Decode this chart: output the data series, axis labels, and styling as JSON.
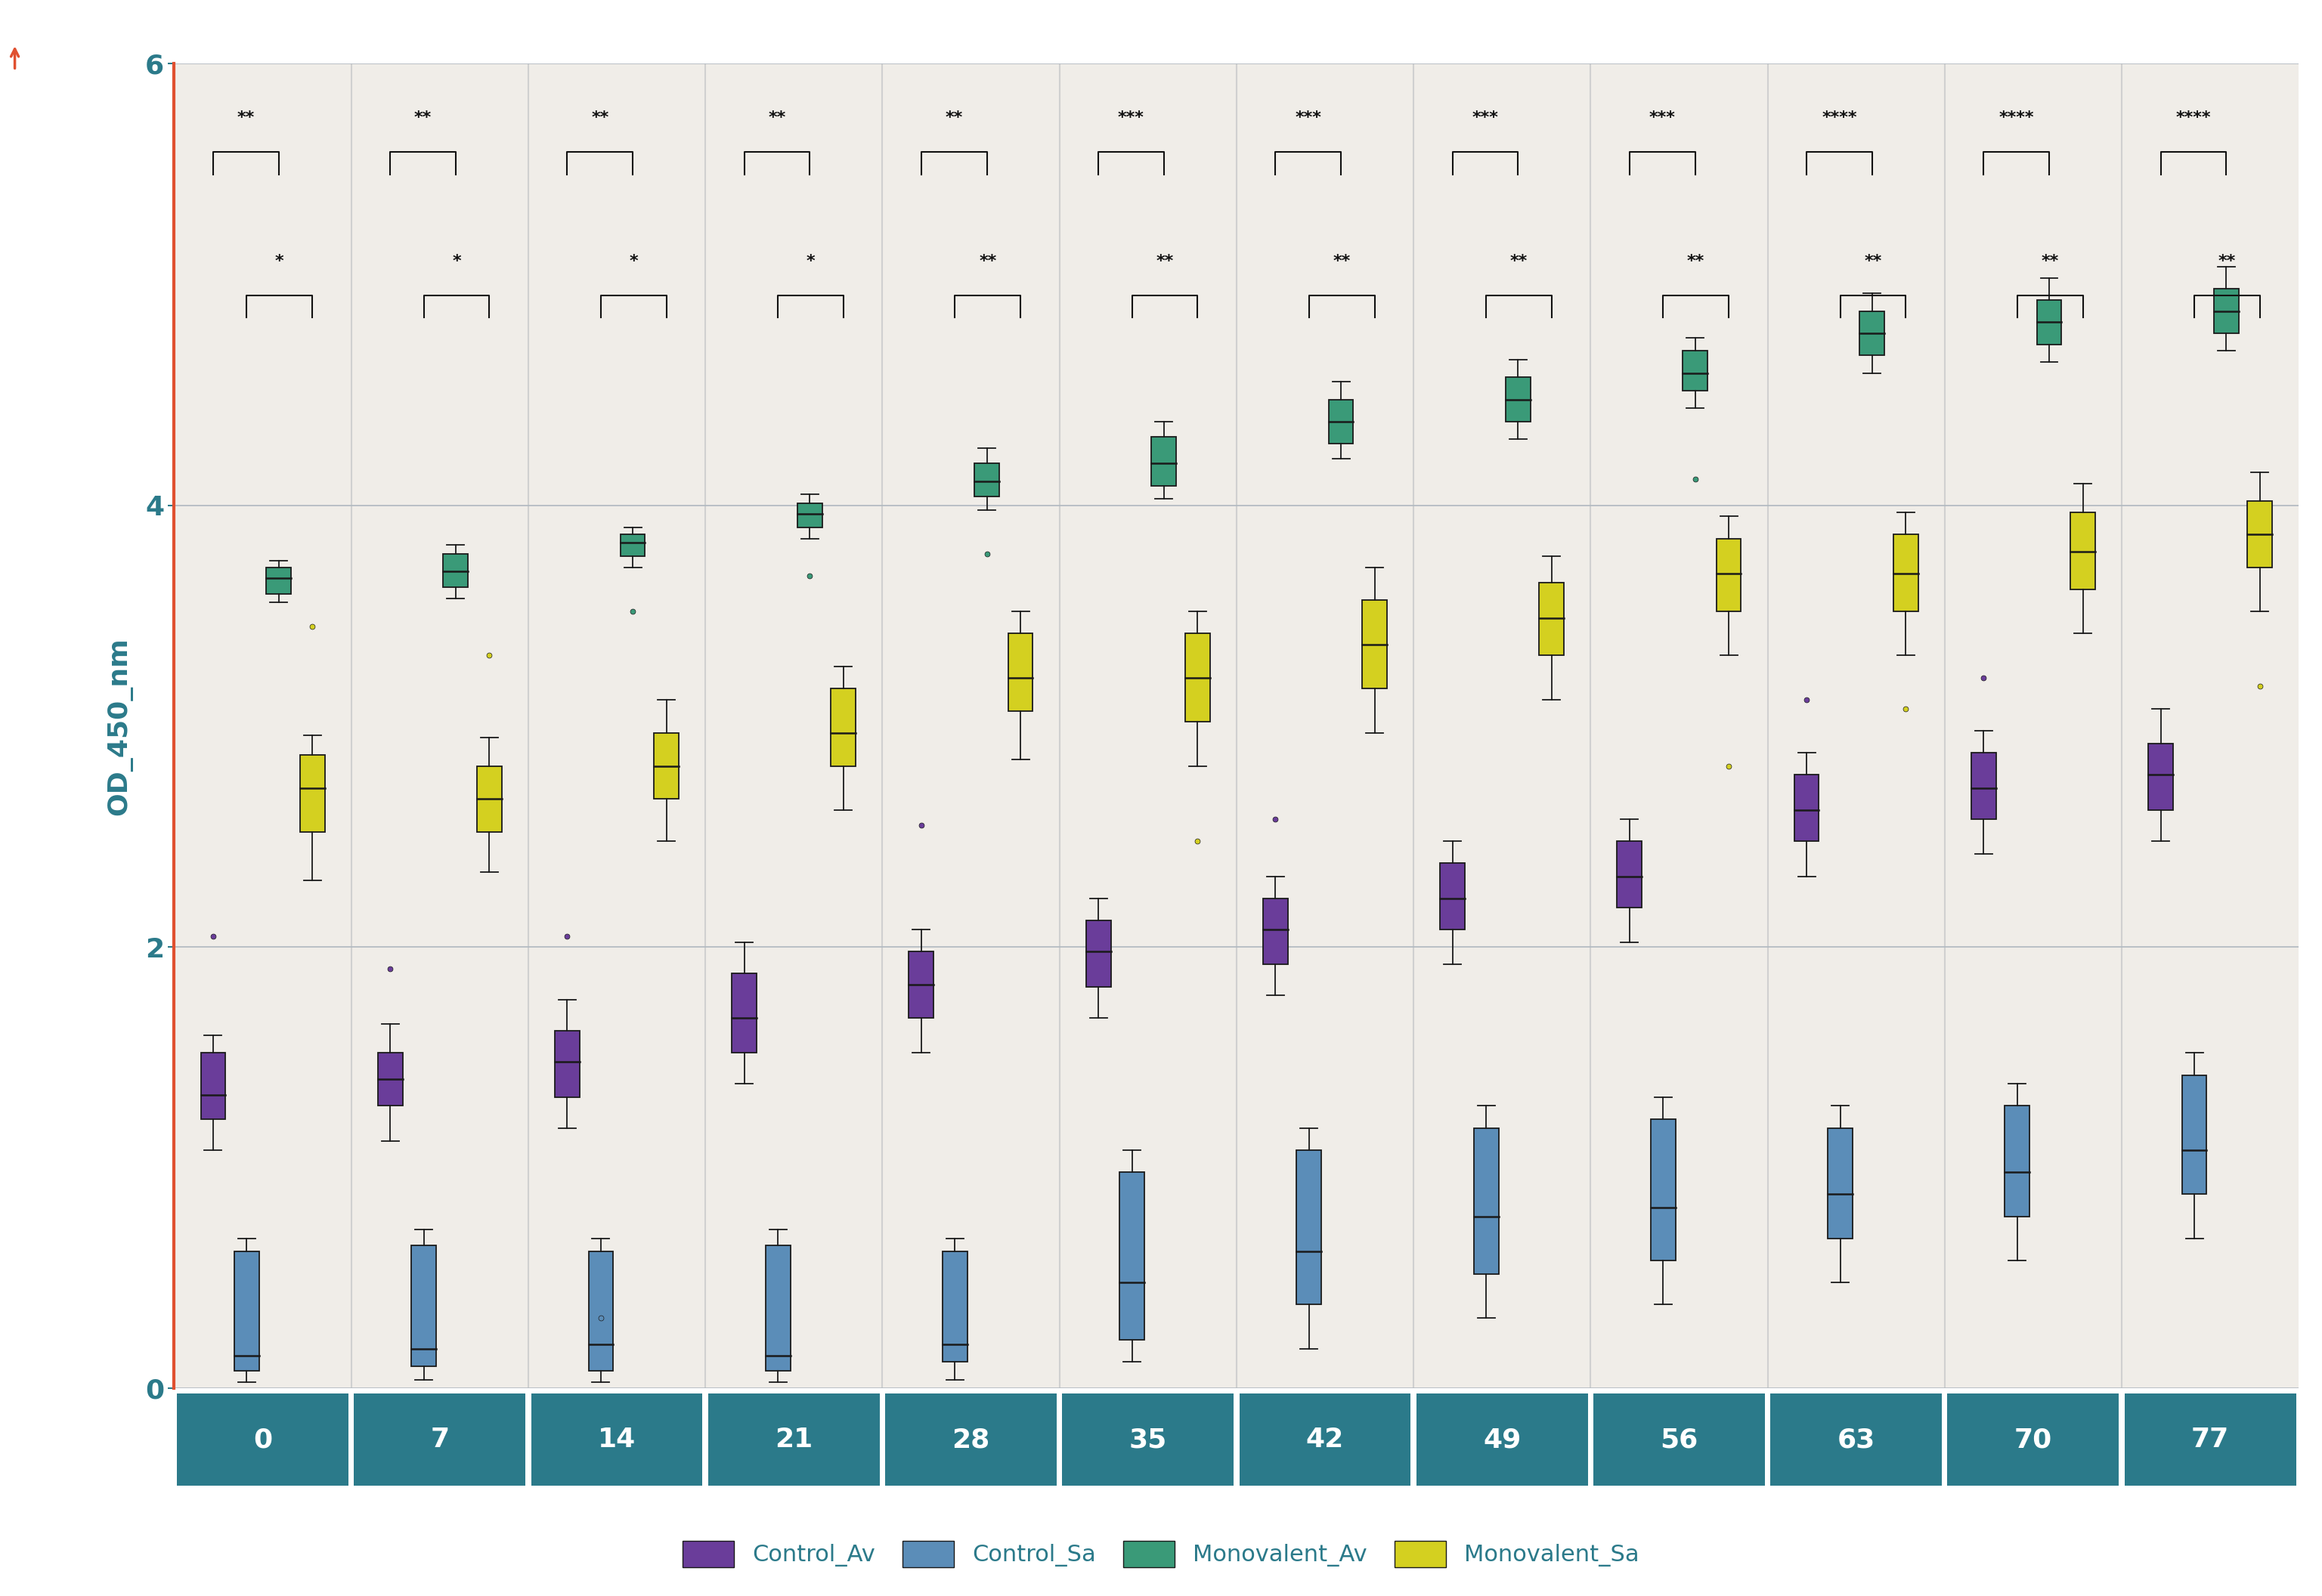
{
  "days": [
    0,
    7,
    14,
    21,
    28,
    35,
    42,
    49,
    56,
    63,
    70,
    77
  ],
  "background_color": "#f0ede8",
  "panel_bg": "#f0ede8",
  "grid_color": "#b0b8c0",
  "spine_color": "#e05030",
  "xlabel_box_color": "#2b7a8a",
  "xlabel_text_color": "#ffffff",
  "ylabel": "OD_450_nm",
  "ylim": [
    0,
    6
  ],
  "yticks": [
    0,
    2,
    4,
    6
  ],
  "series_order": [
    "Control_Av",
    "Control_Sa",
    "Monovalent_Av",
    "Monovalent_Sa"
  ],
  "colors": {
    "Control_Av": "#6a3d9a",
    "Control_Sa": "#5b8db8",
    "Monovalent_Av": "#3a9a78",
    "Monovalent_Sa": "#d4d020"
  },
  "box_width": 0.14,
  "offsets": [
    -0.28,
    -0.09,
    0.09,
    0.28
  ],
  "series": {
    "Control_Av": [
      {
        "q1": 1.22,
        "median": 1.33,
        "q3": 1.52,
        "whislo": 1.08,
        "whishi": 1.6,
        "fliers": [
          2.05
        ]
      },
      {
        "q1": 1.28,
        "median": 1.4,
        "q3": 1.52,
        "whislo": 1.12,
        "whishi": 1.65,
        "fliers": [
          1.9
        ]
      },
      {
        "q1": 1.32,
        "median": 1.48,
        "q3": 1.62,
        "whislo": 1.18,
        "whishi": 1.76,
        "fliers": [
          2.05
        ]
      },
      {
        "q1": 1.52,
        "median": 1.68,
        "q3": 1.88,
        "whislo": 1.38,
        "whishi": 2.02,
        "fliers": []
      },
      {
        "q1": 1.68,
        "median": 1.83,
        "q3": 1.98,
        "whislo": 1.52,
        "whishi": 2.08,
        "fliers": [
          2.55
        ]
      },
      {
        "q1": 1.82,
        "median": 1.98,
        "q3": 2.12,
        "whislo": 1.68,
        "whishi": 2.22,
        "fliers": []
      },
      {
        "q1": 1.92,
        "median": 2.08,
        "q3": 2.22,
        "whislo": 1.78,
        "whishi": 2.32,
        "fliers": [
          2.58
        ]
      },
      {
        "q1": 2.08,
        "median": 2.22,
        "q3": 2.38,
        "whislo": 1.92,
        "whishi": 2.48,
        "fliers": []
      },
      {
        "q1": 2.18,
        "median": 2.32,
        "q3": 2.48,
        "whislo": 2.02,
        "whishi": 2.58,
        "fliers": []
      },
      {
        "q1": 2.48,
        "median": 2.62,
        "q3": 2.78,
        "whislo": 2.32,
        "whishi": 2.88,
        "fliers": [
          3.12
        ]
      },
      {
        "q1": 2.58,
        "median": 2.72,
        "q3": 2.88,
        "whislo": 2.42,
        "whishi": 2.98,
        "fliers": [
          3.22
        ]
      },
      {
        "q1": 2.62,
        "median": 2.78,
        "q3": 2.92,
        "whislo": 2.48,
        "whishi": 3.08,
        "fliers": []
      }
    ],
    "Control_Sa": [
      {
        "q1": 0.08,
        "median": 0.15,
        "q3": 0.62,
        "whislo": 0.03,
        "whishi": 0.68,
        "fliers": []
      },
      {
        "q1": 0.1,
        "median": 0.18,
        "q3": 0.65,
        "whislo": 0.04,
        "whishi": 0.72,
        "fliers": []
      },
      {
        "q1": 0.08,
        "median": 0.2,
        "q3": 0.62,
        "whislo": 0.03,
        "whishi": 0.68,
        "fliers": [
          0.32
        ]
      },
      {
        "q1": 0.08,
        "median": 0.15,
        "q3": 0.65,
        "whislo": 0.03,
        "whishi": 0.72,
        "fliers": []
      },
      {
        "q1": 0.12,
        "median": 0.2,
        "q3": 0.62,
        "whislo": 0.04,
        "whishi": 0.68,
        "fliers": []
      },
      {
        "q1": 0.22,
        "median": 0.48,
        "q3": 0.98,
        "whislo": 0.12,
        "whishi": 1.08,
        "fliers": []
      },
      {
        "q1": 0.38,
        "median": 0.62,
        "q3": 1.08,
        "whislo": 0.18,
        "whishi": 1.18,
        "fliers": []
      },
      {
        "q1": 0.52,
        "median": 0.78,
        "q3": 1.18,
        "whislo": 0.32,
        "whishi": 1.28,
        "fliers": []
      },
      {
        "q1": 0.58,
        "median": 0.82,
        "q3": 1.22,
        "whislo": 0.38,
        "whishi": 1.32,
        "fliers": []
      },
      {
        "q1": 0.68,
        "median": 0.88,
        "q3": 1.18,
        "whislo": 0.48,
        "whishi": 1.28,
        "fliers": []
      },
      {
        "q1": 0.78,
        "median": 0.98,
        "q3": 1.28,
        "whislo": 0.58,
        "whishi": 1.38,
        "fliers": []
      },
      {
        "q1": 0.88,
        "median": 1.08,
        "q3": 1.42,
        "whislo": 0.68,
        "whishi": 1.52,
        "fliers": []
      }
    ],
    "Monovalent_Av": [
      {
        "q1": 3.6,
        "median": 3.67,
        "q3": 3.72,
        "whislo": 3.56,
        "whishi": 3.75,
        "fliers": []
      },
      {
        "q1": 3.63,
        "median": 3.7,
        "q3": 3.78,
        "whislo": 3.58,
        "whishi": 3.82,
        "fliers": []
      },
      {
        "q1": 3.77,
        "median": 3.83,
        "q3": 3.87,
        "whislo": 3.72,
        "whishi": 3.9,
        "fliers": [
          3.52
        ]
      },
      {
        "q1": 3.9,
        "median": 3.96,
        "q3": 4.01,
        "whislo": 3.85,
        "whishi": 4.05,
        "fliers": [
          3.68
        ]
      },
      {
        "q1": 4.04,
        "median": 4.11,
        "q3": 4.19,
        "whislo": 3.98,
        "whishi": 4.26,
        "fliers": [
          3.78
        ]
      },
      {
        "q1": 4.09,
        "median": 4.19,
        "q3": 4.31,
        "whislo": 4.03,
        "whishi": 4.38,
        "fliers": []
      },
      {
        "q1": 4.28,
        "median": 4.38,
        "q3": 4.48,
        "whislo": 4.21,
        "whishi": 4.56,
        "fliers": []
      },
      {
        "q1": 4.38,
        "median": 4.48,
        "q3": 4.58,
        "whislo": 4.3,
        "whishi": 4.66,
        "fliers": []
      },
      {
        "q1": 4.52,
        "median": 4.6,
        "q3": 4.7,
        "whislo": 4.44,
        "whishi": 4.76,
        "fliers": [
          4.12
        ]
      },
      {
        "q1": 4.68,
        "median": 4.78,
        "q3": 4.88,
        "whislo": 4.6,
        "whishi": 4.96,
        "fliers": []
      },
      {
        "q1": 4.73,
        "median": 4.83,
        "q3": 4.93,
        "whislo": 4.65,
        "whishi": 5.03,
        "fliers": []
      },
      {
        "q1": 4.78,
        "median": 4.88,
        "q3": 4.98,
        "whislo": 4.7,
        "whishi": 5.08,
        "fliers": []
      }
    ],
    "Monovalent_Sa": [
      {
        "q1": 2.52,
        "median": 2.72,
        "q3": 2.87,
        "whislo": 2.3,
        "whishi": 2.96,
        "fliers": [
          3.45
        ]
      },
      {
        "q1": 2.52,
        "median": 2.67,
        "q3": 2.82,
        "whislo": 2.34,
        "whishi": 2.95,
        "fliers": [
          3.32
        ]
      },
      {
        "q1": 2.67,
        "median": 2.82,
        "q3": 2.97,
        "whislo": 2.48,
        "whishi": 3.12,
        "fliers": []
      },
      {
        "q1": 2.82,
        "median": 2.97,
        "q3": 3.17,
        "whislo": 2.62,
        "whishi": 3.27,
        "fliers": []
      },
      {
        "q1": 3.07,
        "median": 3.22,
        "q3": 3.42,
        "whislo": 2.85,
        "whishi": 3.52,
        "fliers": []
      },
      {
        "q1": 3.02,
        "median": 3.22,
        "q3": 3.42,
        "whislo": 2.82,
        "whishi": 3.52,
        "fliers": [
          2.48
        ]
      },
      {
        "q1": 3.17,
        "median": 3.37,
        "q3": 3.57,
        "whislo": 2.97,
        "whishi": 3.72,
        "fliers": []
      },
      {
        "q1": 3.32,
        "median": 3.49,
        "q3": 3.65,
        "whislo": 3.12,
        "whishi": 3.77,
        "fliers": []
      },
      {
        "q1": 3.52,
        "median": 3.69,
        "q3": 3.85,
        "whislo": 3.32,
        "whishi": 3.95,
        "fliers": [
          2.82
        ]
      },
      {
        "q1": 3.52,
        "median": 3.69,
        "q3": 3.87,
        "whislo": 3.32,
        "whishi": 3.97,
        "fliers": [
          3.08
        ]
      },
      {
        "q1": 3.62,
        "median": 3.79,
        "q3": 3.97,
        "whislo": 3.42,
        "whishi": 4.1,
        "fliers": []
      },
      {
        "q1": 3.72,
        "median": 3.87,
        "q3": 4.02,
        "whislo": 3.52,
        "whishi": 4.15,
        "fliers": [
          3.18
        ]
      }
    ]
  },
  "significance_top": [
    "**",
    "**",
    "**",
    "**",
    "**",
    "***",
    "***",
    "***",
    "***",
    "****",
    "****",
    "****"
  ],
  "significance_mid": [
    "*",
    "*",
    "*",
    "*",
    "**",
    "**",
    "**",
    "**",
    "**",
    "**",
    "**",
    "**"
  ],
  "legend_labels": [
    "Control_Av",
    "Control_Sa",
    "Monovalent_Av",
    "Monovalent_Sa"
  ]
}
